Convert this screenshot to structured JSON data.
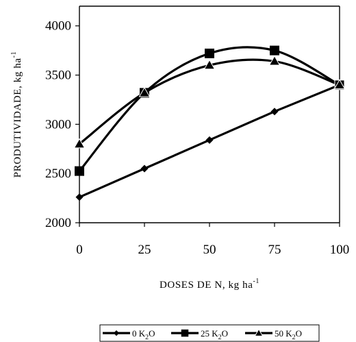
{
  "chart_data": {
    "type": "line",
    "x": [
      0,
      25,
      50,
      75,
      100
    ],
    "x_ticks": [
      "0",
      "25",
      "50",
      "75",
      "100"
    ],
    "y_ticks": [
      "2000",
      "2500",
      "3000",
      "3500",
      "4000"
    ],
    "xlim": [
      0,
      100
    ],
    "ylim": [
      2000,
      4200
    ],
    "xlabel": "DOSES DE N, kg ha",
    "xlabel_sup": "-1",
    "ylabel": "PRODUTIVIDADE, kg ha",
    "ylabel_sup": "-1",
    "grid": false,
    "legend_position": "bottom",
    "series": [
      {
        "name": "0 K2O",
        "legend_parts": [
          "0 K",
          "2",
          "O"
        ],
        "marker": "diamond",
        "curve": "straight",
        "values": [
          2260,
          2550,
          2840,
          3130,
          3400
        ]
      },
      {
        "name": "25 K2O",
        "legend_parts": [
          "25 K",
          "2",
          "O"
        ],
        "marker": "square",
        "curve": "smooth",
        "values": [
          2525,
          3320,
          3720,
          3750,
          3400
        ]
      },
      {
        "name": "50 K2O",
        "legend_parts": [
          "50 K",
          "2",
          "O"
        ],
        "marker": "triangle",
        "curve": "smooth",
        "values": [
          2800,
          3320,
          3600,
          3640,
          3400
        ]
      }
    ]
  }
}
